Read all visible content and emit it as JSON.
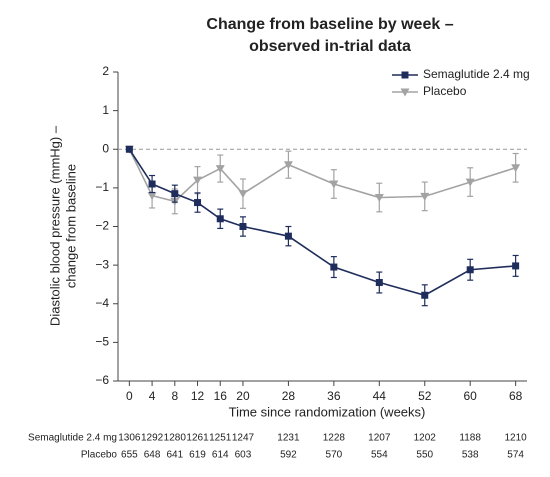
{
  "chart_data": {
    "type": "line",
    "title": [
      "Change from baseline by week –",
      "observed in-trial data"
    ],
    "ylabel": [
      "Diastolic blood pressure (mmHg) –",
      "change from baseline"
    ],
    "xlabel": "Time since randomization (weeks)",
    "x": [
      0,
      4,
      8,
      12,
      16,
      20,
      28,
      36,
      44,
      52,
      60,
      68
    ],
    "xlim": [
      -2,
      70
    ],
    "xticks": [
      0,
      4,
      8,
      12,
      16,
      20,
      28,
      36,
      44,
      52,
      60,
      68
    ],
    "ylim": [
      -6,
      2
    ],
    "yticks": [
      2,
      1,
      0,
      {
        "value": -1,
        "label": "−1"
      },
      {
        "value": -2,
        "label": "−2"
      },
      {
        "value": -3,
        "label": "−3"
      },
      {
        "value": -4,
        "label": "−4"
      },
      {
        "value": -5,
        "label": "−5"
      },
      {
        "value": -6,
        "label": "−6"
      }
    ],
    "reference_y": 0,
    "legend": "top-right",
    "series": [
      {
        "name": "Semaglutide 2.4 mg",
        "color": "#1f2d5c",
        "marker": "square",
        "values": [
          0,
          -0.9,
          -1.15,
          -1.38,
          -1.8,
          -2.0,
          -2.25,
          -3.05,
          -3.45,
          -3.78,
          -3.12,
          -3.02
        ],
        "errors": [
          0,
          0.22,
          0.22,
          0.25,
          0.25,
          0.25,
          0.25,
          0.27,
          0.27,
          0.27,
          0.27,
          0.27
        ]
      },
      {
        "name": "Placebo",
        "color": "#a3a3a3",
        "marker": "triangle-down",
        "values": [
          0,
          -1.2,
          -1.35,
          -0.8,
          -0.5,
          -1.15,
          -0.4,
          -0.9,
          -1.25,
          -1.22,
          -0.85,
          -0.48
        ],
        "errors": [
          0,
          0.32,
          0.32,
          0.35,
          0.35,
          0.38,
          0.35,
          0.37,
          0.37,
          0.37,
          0.37,
          0.37
        ]
      }
    ],
    "number_at_risk": [
      {
        "name": "Semaglutide 2.4 mg",
        "values": [
          1306,
          1292,
          1280,
          1261,
          1251,
          1247,
          1231,
          1228,
          1207,
          1202,
          1188,
          1210
        ]
      },
      {
        "name": "Placebo",
        "values": [
          655,
          648,
          641,
          619,
          614,
          603,
          592,
          570,
          554,
          550,
          538,
          574
        ]
      }
    ]
  }
}
